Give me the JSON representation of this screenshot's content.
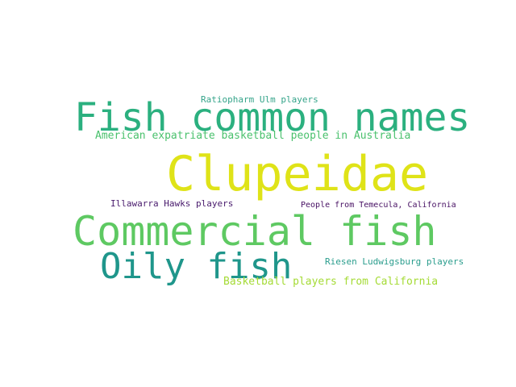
{
  "words": [
    {
      "text": "Ratiopharm Ulm players",
      "color": "#35a48a"
    },
    {
      "text": "Fish common names",
      "color": "#2bb07f"
    },
    {
      "text": "American expatriate basketball people in Australia",
      "color": "#4ac16d"
    },
    {
      "text": "Clupeidae",
      "color": "#dfe318"
    },
    {
      "text": "Illawarra Hawks players",
      "color": "#481a6c"
    },
    {
      "text": "People from Temecula, California",
      "color": "#471063"
    },
    {
      "text": "Commercial fish",
      "color": "#5ec962"
    },
    {
      "text": "Oily fish",
      "color": "#1f968b"
    },
    {
      "text": "Riesen Ludwigsburg players",
      "color": "#2a9d8d"
    },
    {
      "text": "Basketball players from California",
      "color": "#a5db36"
    }
  ]
}
